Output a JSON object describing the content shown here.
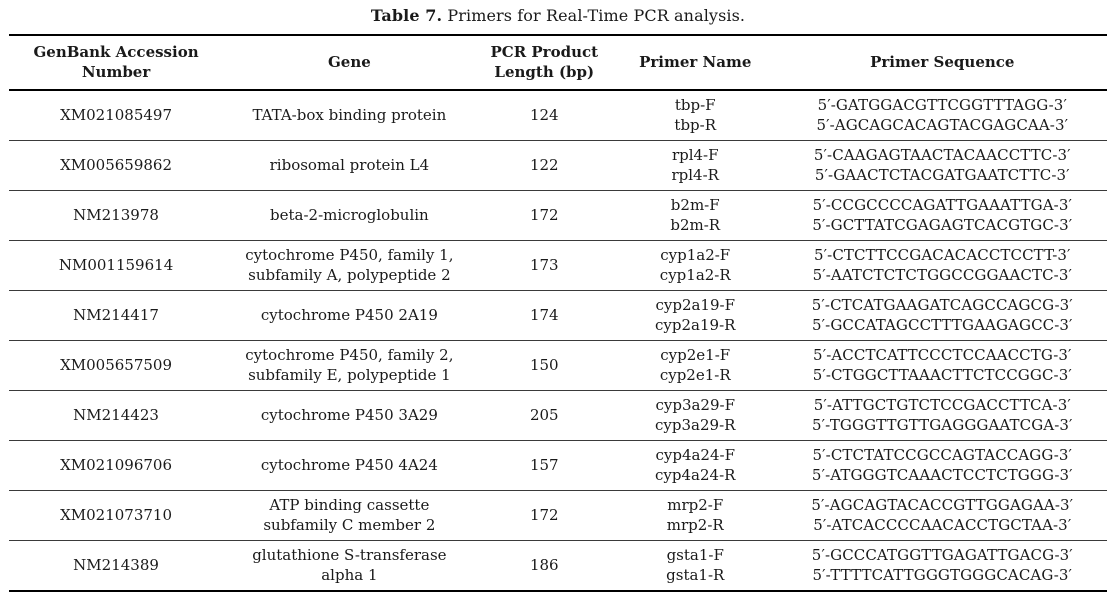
{
  "caption": {
    "label": "Table 7.",
    "text": " Primers for Real-Time PCR analysis."
  },
  "table": {
    "columns": {
      "genbank": "GenBank Accession Number",
      "gene": "Gene",
      "length": "PCR Product Length (bp)",
      "primer_name": "Primer Name",
      "primer_sequence": "Primer Sequence"
    },
    "rows": [
      {
        "genbank": "XM021085497",
        "gene": "TATA-box binding protein",
        "length_bp": "124",
        "primer_names": [
          "tbp-F",
          "tbp-R"
        ],
        "primer_sequences": [
          "5′-GATGGACGTTCGGTTTAGG-3′",
          "5′-AGCAGCACAGTACGAGCAA-3′"
        ]
      },
      {
        "genbank": "XM005659862",
        "gene": "ribosomal protein L4",
        "length_bp": "122",
        "primer_names": [
          "rpl4-F",
          "rpl4-R"
        ],
        "primer_sequences": [
          "5′-CAAGAGTAACTACAACCTTC-3′",
          "5′-GAACTCTACGATGAATCTTC-3′"
        ]
      },
      {
        "genbank": "NM213978",
        "gene": "beta-2-microglobulin",
        "length_bp": "172",
        "primer_names": [
          "b2m-F",
          "b2m-R"
        ],
        "primer_sequences": [
          "5′-CCGCCCCAGATTGAAATTGA-3′",
          "5′-GCTTATCGAGAGTCACGTGC-3′"
        ]
      },
      {
        "genbank": "NM001159614",
        "gene": [
          "cytochrome P450, family 1,",
          "subfamily A, polypeptide 2"
        ],
        "length_bp": "173",
        "primer_names": [
          "cyp1a2-F",
          "cyp1a2-R"
        ],
        "primer_sequences": [
          "5′-CTCTTCCGACACACCTCCTT-3′",
          "5′-AATCTCTCTGGCCGGAACTC-3′"
        ]
      },
      {
        "genbank": "NM214417",
        "gene": "cytochrome P450 2A19",
        "length_bp": "174",
        "primer_names": [
          "cyp2a19-F",
          "cyp2a19-R"
        ],
        "primer_sequences": [
          "5′-CTCATGAAGATCAGCCAGCG-3′",
          "5′-GCCATAGCCTTTGAAGAGCC-3′"
        ]
      },
      {
        "genbank": "XM005657509",
        "gene": [
          "cytochrome P450, family 2,",
          "subfamily E, polypeptide 1"
        ],
        "length_bp": "150",
        "primer_names": [
          "cyp2e1-F",
          "cyp2e1-R"
        ],
        "primer_sequences": [
          "5′-ACCTCATTCCCTCCAACCTG-3′",
          "5′-CTGGCTTAAACTTCTCCGGC-3′"
        ]
      },
      {
        "genbank": "NM214423",
        "gene": "cytochrome P450 3A29",
        "length_bp": "205",
        "primer_names": [
          "cyp3a29-F",
          "cyp3a29-R"
        ],
        "primer_sequences": [
          "5′-ATTGCTGTCTCCGACCTTCA-3′",
          "5′-TGGGTTGTTGAGGGAATCGA-3′"
        ]
      },
      {
        "genbank": "XM021096706",
        "gene": "cytochrome P450 4A24",
        "length_bp": "157",
        "primer_names": [
          "cyp4a24-F",
          "cyp4a24-R"
        ],
        "primer_sequences": [
          "5′-CTCTATCCGCCAGTACCAGG-3′",
          "5′-ATGGGTCAAACTCCTCTGGG-3′"
        ]
      },
      {
        "genbank": "XM021073710",
        "gene": [
          "ATP binding cassette",
          "subfamily C member 2"
        ],
        "length_bp": "172",
        "primer_names": [
          "mrp2-F",
          "mrp2-R"
        ],
        "primer_sequences": [
          "5′-AGCAGTACACCGTTGGAGAA-3′",
          "5′-ATCACCCCAACACCTGCTAA-3′"
        ]
      },
      {
        "genbank": "NM214389",
        "gene": [
          "glutathione S-transferase",
          "alpha 1"
        ],
        "length_bp": "186",
        "primer_names": [
          "gsta1-F",
          "gsta1-R"
        ],
        "primer_sequences": [
          "5′-GCCCATGGTTGAGATTGACG-3′",
          "5′-TTTTCATTGGGTGGGCACAG-3′"
        ]
      }
    ]
  }
}
